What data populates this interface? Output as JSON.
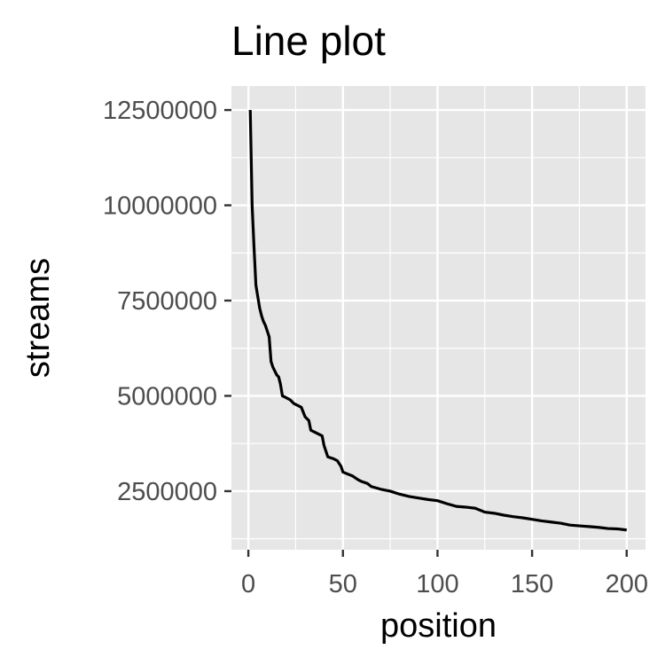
{
  "chart_data": {
    "type": "line",
    "title": "Line plot",
    "xlabel": "position",
    "ylabel": "streams",
    "xlim": [
      -8.95,
      209.95
    ],
    "ylim": [
      962700,
      13130000
    ],
    "x_ticks": [
      0,
      50,
      100,
      150,
      200
    ],
    "x_tick_labels": [
      "0",
      "50",
      "100",
      "150",
      "200"
    ],
    "y_ticks": [
      2500000,
      5000000,
      7500000,
      10000000,
      12500000
    ],
    "y_tick_labels": [
      "2500000",
      "5000000",
      "7500000",
      "10000000",
      "12500000"
    ],
    "grid": true,
    "legend": "none",
    "line_color": "#000000",
    "panel_color": "#e6e6e6",
    "series": [
      {
        "points": [
          [
            1,
            12500000
          ],
          [
            2,
            10000000
          ],
          [
            3,
            8900000
          ],
          [
            4,
            7900000
          ],
          [
            5,
            7600000
          ],
          [
            6,
            7300000
          ],
          [
            7,
            7100000
          ],
          [
            8,
            6950000
          ],
          [
            9,
            6850000
          ],
          [
            10,
            6700000
          ],
          [
            11,
            6550000
          ],
          [
            12,
            5900000
          ],
          [
            13,
            5750000
          ],
          [
            14,
            5650000
          ],
          [
            15,
            5550000
          ],
          [
            16,
            5500000
          ],
          [
            17,
            5300000
          ],
          [
            18,
            5000000
          ],
          [
            20,
            4950000
          ],
          [
            22,
            4900000
          ],
          [
            24,
            4800000
          ],
          [
            26,
            4750000
          ],
          [
            28,
            4700000
          ],
          [
            30,
            4450000
          ],
          [
            32,
            4350000
          ],
          [
            33,
            4100000
          ],
          [
            35,
            4050000
          ],
          [
            37,
            4000000
          ],
          [
            39,
            3950000
          ],
          [
            40,
            3700000
          ],
          [
            42,
            3400000
          ],
          [
            45,
            3350000
          ],
          [
            47,
            3300000
          ],
          [
            49,
            3150000
          ],
          [
            50,
            3000000
          ],
          [
            55,
            2900000
          ],
          [
            58,
            2800000
          ],
          [
            60,
            2750000
          ],
          [
            63,
            2700000
          ],
          [
            65,
            2620000
          ],
          [
            70,
            2550000
          ],
          [
            75,
            2500000
          ],
          [
            80,
            2420000
          ],
          [
            85,
            2360000
          ],
          [
            90,
            2320000
          ],
          [
            95,
            2280000
          ],
          [
            100,
            2250000
          ],
          [
            105,
            2170000
          ],
          [
            110,
            2100000
          ],
          [
            115,
            2080000
          ],
          [
            120,
            2050000
          ],
          [
            125,
            1950000
          ],
          [
            130,
            1920000
          ],
          [
            135,
            1870000
          ],
          [
            140,
            1830000
          ],
          [
            145,
            1800000
          ],
          [
            150,
            1760000
          ],
          [
            155,
            1720000
          ],
          [
            160,
            1690000
          ],
          [
            165,
            1660000
          ],
          [
            170,
            1610000
          ],
          [
            175,
            1590000
          ],
          [
            180,
            1570000
          ],
          [
            185,
            1550000
          ],
          [
            190,
            1520000
          ],
          [
            195,
            1510000
          ],
          [
            200,
            1480000
          ]
        ]
      }
    ]
  }
}
